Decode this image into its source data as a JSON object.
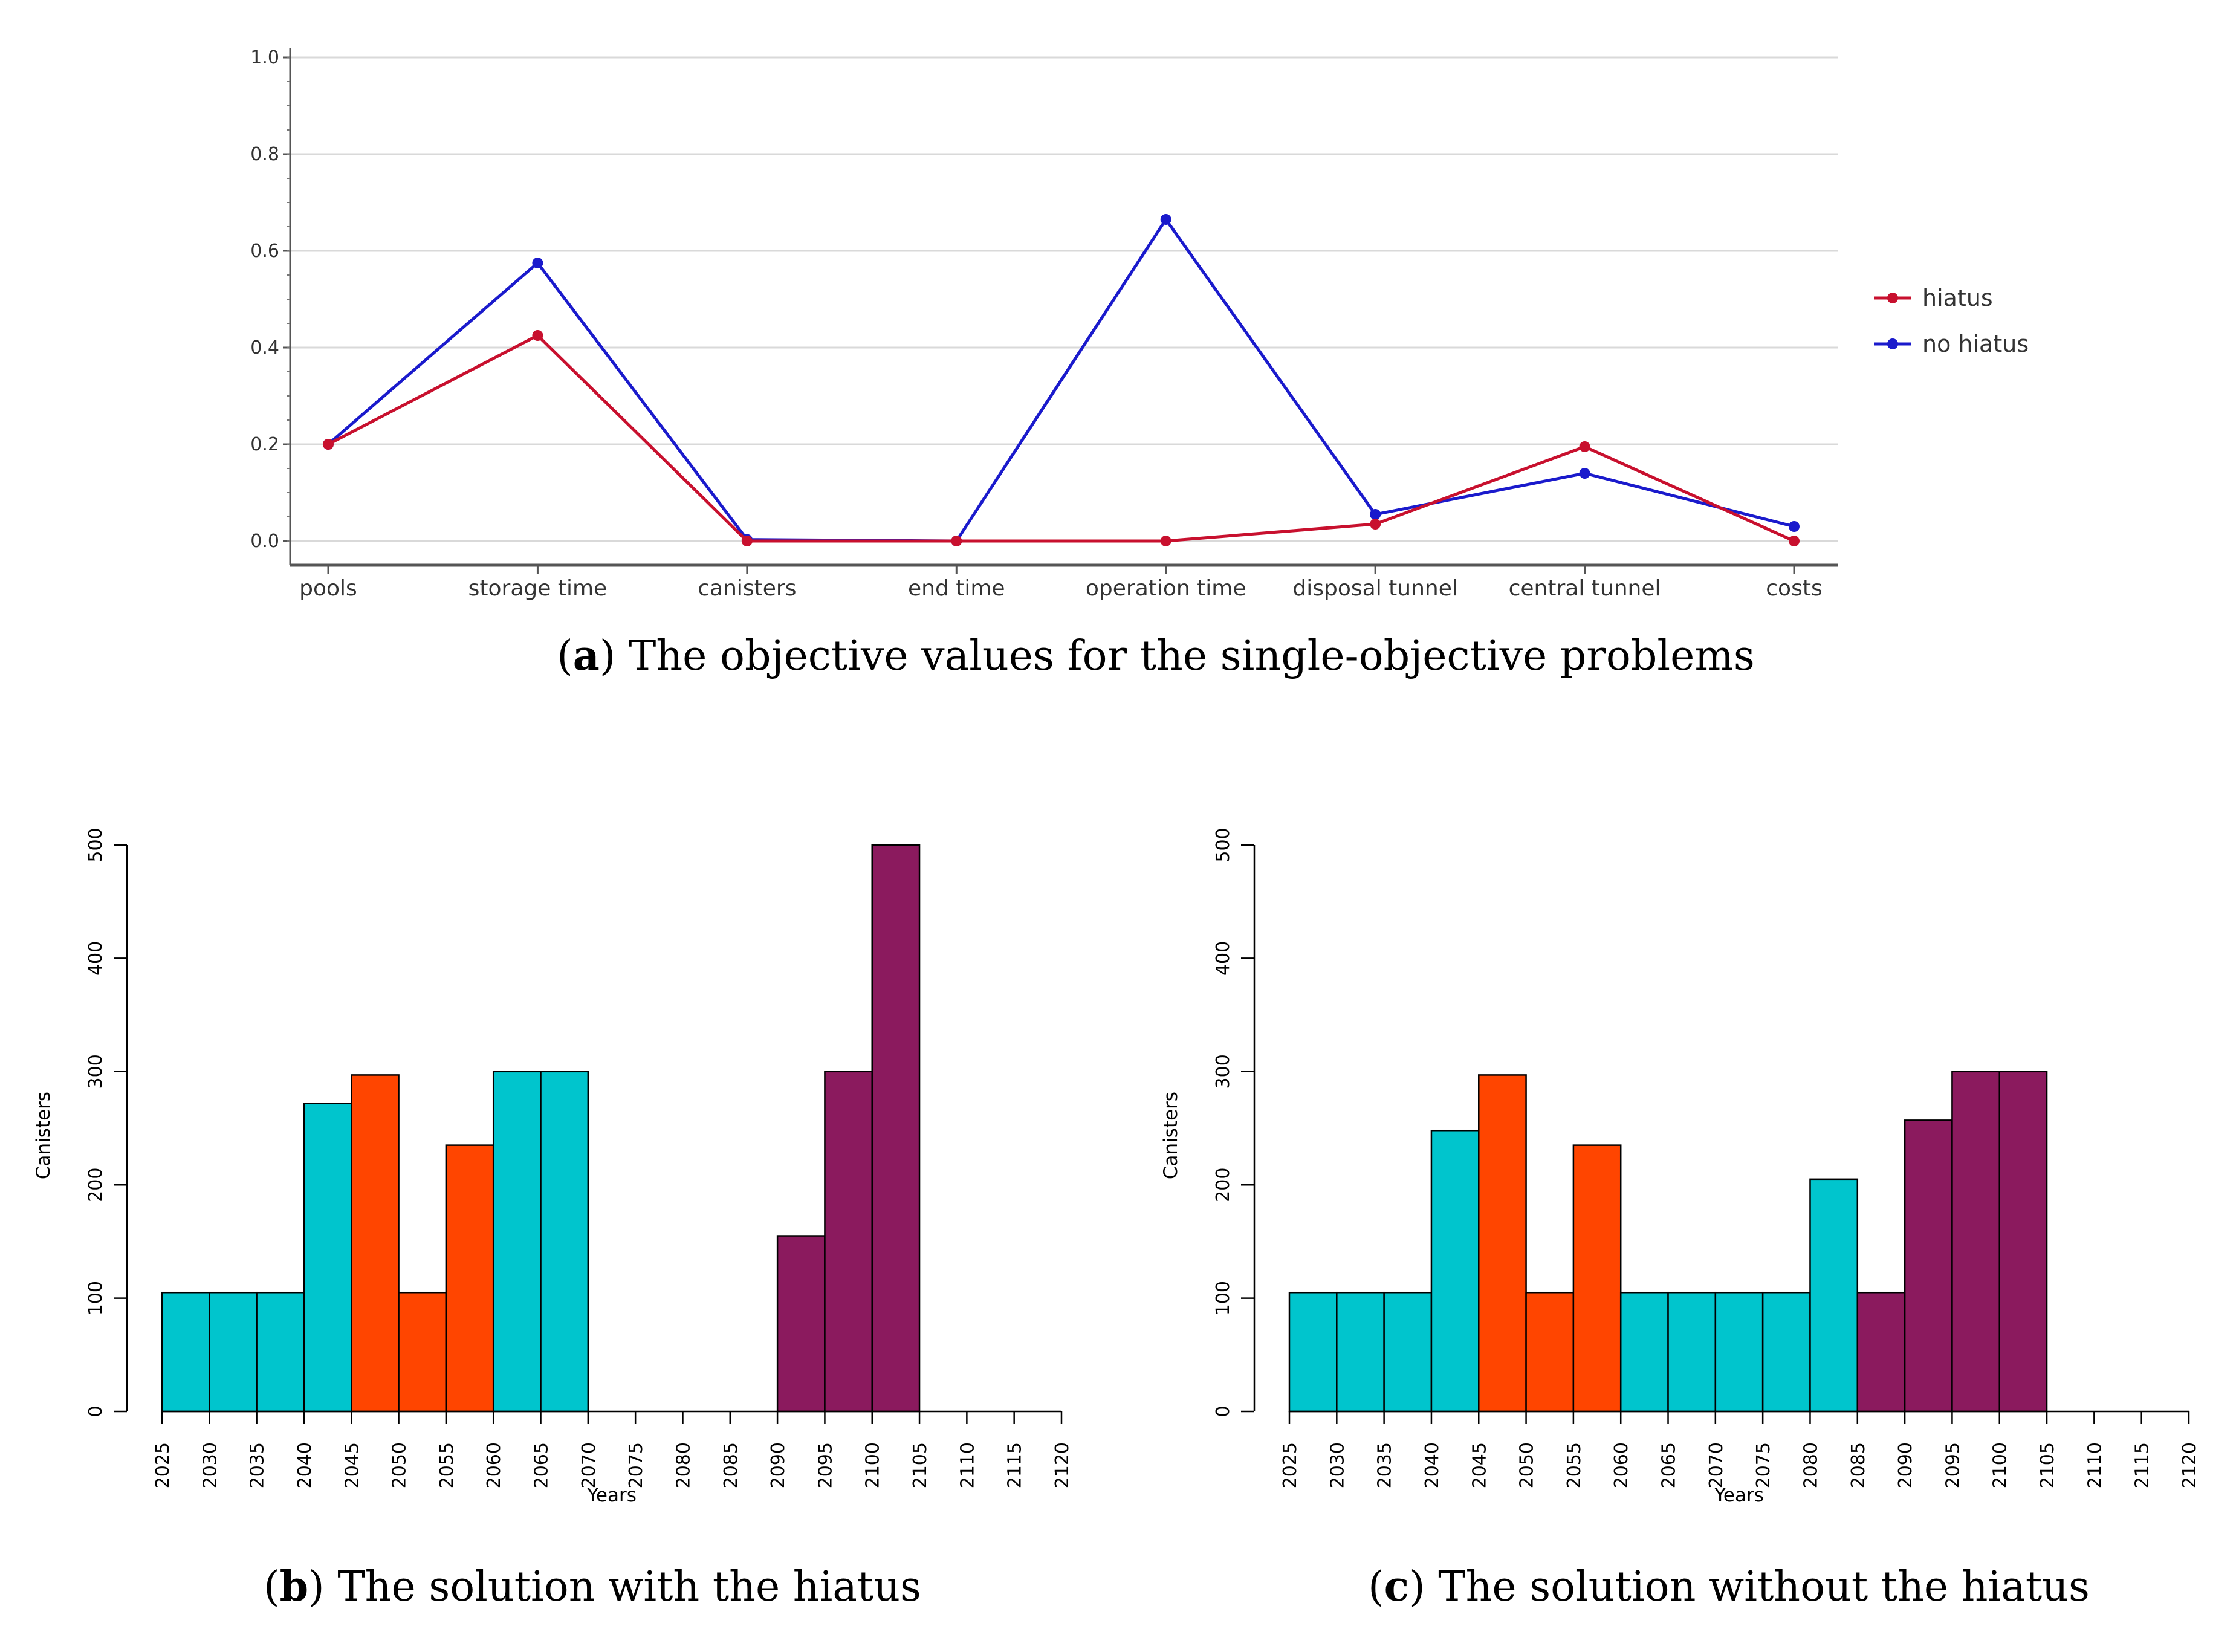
{
  "captions": {
    "a": {
      "letter": "a",
      "text": ") The objective values for the single-objective problems"
    },
    "b": {
      "letter": "b",
      "text": ") The solution with the hiatus"
    },
    "c": {
      "letter": "c",
      "text": ") The solution without the hiatus"
    }
  },
  "colors": {
    "hiatus": "#c8102e",
    "no_hiatus": "#1a1acc",
    "cyan": "#00c5cd",
    "orange": "#ff4500",
    "purple": "#8b1a5e"
  },
  "chart_data": [
    {
      "type": "line",
      "title": "",
      "categories": [
        "pools",
        "storage time",
        "canisters",
        "end time",
        "operation time",
        "disposal tunnel",
        "central tunnel",
        "costs"
      ],
      "ylim": [
        0,
        1.0
      ],
      "yticks": [
        "0.0",
        "0.2",
        "0.4",
        "0.6",
        "0.8",
        "1.0"
      ],
      "grid": true,
      "legend_position": "right",
      "series": [
        {
          "name": "hiatus",
          "color": "#c8102e",
          "values": [
            0.2,
            0.425,
            0.0,
            0.0,
            0.0,
            0.035,
            0.195,
            0.0
          ]
        },
        {
          "name": "no hiatus",
          "color": "#1a1acc",
          "values": [
            0.2,
            0.575,
            0.003,
            0.0,
            0.665,
            0.055,
            0.14,
            0.03
          ]
        }
      ]
    },
    {
      "type": "bar",
      "xlabel": "Years",
      "ylabel": "Canisters",
      "ylim": [
        0,
        500
      ],
      "yticks": [
        "0",
        "100",
        "200",
        "300",
        "400",
        "500"
      ],
      "xticks": [
        "2025",
        "2030",
        "2035",
        "2040",
        "2045",
        "2050",
        "2055",
        "2060",
        "2065",
        "2070",
        "2075",
        "2080",
        "2085",
        "2090",
        "2095",
        "2100",
        "2105",
        "2110",
        "2115",
        "2120"
      ],
      "bars": [
        {
          "start": 2025,
          "value": 105,
          "color": "cyan"
        },
        {
          "start": 2030,
          "value": 105,
          "color": "cyan"
        },
        {
          "start": 2035,
          "value": 105,
          "color": "cyan"
        },
        {
          "start": 2040,
          "value": 272,
          "color": "cyan"
        },
        {
          "start": 2045,
          "value": 297,
          "color": "orange"
        },
        {
          "start": 2050,
          "value": 105,
          "color": "orange"
        },
        {
          "start": 2055,
          "value": 235,
          "color": "orange"
        },
        {
          "start": 2060,
          "value": 300,
          "color": "cyan"
        },
        {
          "start": 2065,
          "value": 300,
          "color": "cyan"
        },
        {
          "start": 2090,
          "value": 155,
          "color": "purple"
        },
        {
          "start": 2095,
          "value": 300,
          "color": "purple"
        },
        {
          "start": 2100,
          "value": 500,
          "color": "purple"
        }
      ]
    },
    {
      "type": "bar",
      "xlabel": "Years",
      "ylabel": "Canisters",
      "ylim": [
        0,
        500
      ],
      "yticks": [
        "0",
        "100",
        "200",
        "300",
        "400",
        "500"
      ],
      "xticks": [
        "2025",
        "2030",
        "2035",
        "2040",
        "2045",
        "2050",
        "2055",
        "2060",
        "2065",
        "2070",
        "2075",
        "2080",
        "2085",
        "2090",
        "2095",
        "2100",
        "2105",
        "2110",
        "2115",
        "2120"
      ],
      "bars": [
        {
          "start": 2025,
          "value": 105,
          "color": "cyan"
        },
        {
          "start": 2030,
          "value": 105,
          "color": "cyan"
        },
        {
          "start": 2035,
          "value": 105,
          "color": "cyan"
        },
        {
          "start": 2040,
          "value": 248,
          "color": "cyan"
        },
        {
          "start": 2045,
          "value": 297,
          "color": "orange"
        },
        {
          "start": 2050,
          "value": 105,
          "color": "orange"
        },
        {
          "start": 2055,
          "value": 235,
          "color": "orange"
        },
        {
          "start": 2060,
          "value": 105,
          "color": "cyan"
        },
        {
          "start": 2065,
          "value": 105,
          "color": "cyan"
        },
        {
          "start": 2070,
          "value": 105,
          "color": "cyan"
        },
        {
          "start": 2075,
          "value": 105,
          "color": "cyan"
        },
        {
          "start": 2080,
          "value": 205,
          "color": "cyan"
        },
        {
          "start": 2085,
          "value": 105,
          "color": "purple"
        },
        {
          "start": 2090,
          "value": 257,
          "color": "purple"
        },
        {
          "start": 2095,
          "value": 300,
          "color": "purple"
        },
        {
          "start": 2100,
          "value": 300,
          "color": "purple"
        }
      ]
    }
  ]
}
